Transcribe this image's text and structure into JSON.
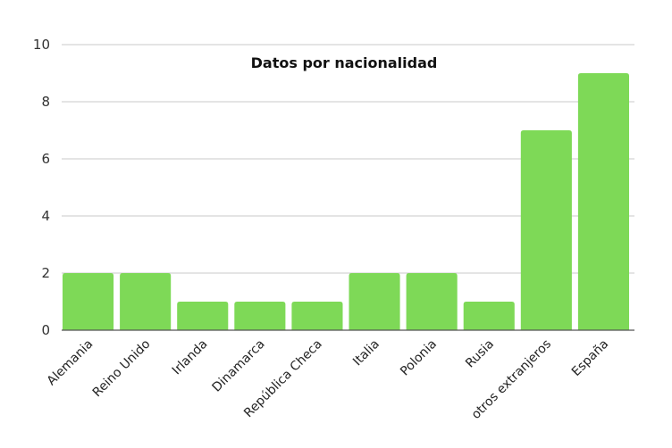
{
  "chart_data": {
    "type": "bar",
    "title": "Datos por nacionalidad",
    "xlabel": "",
    "ylabel": "",
    "ylim": [
      0,
      10
    ],
    "yticks": [
      0,
      2,
      4,
      6,
      8,
      10
    ],
    "grid": true,
    "legend": null,
    "bar_color": "#7ED957",
    "categories": [
      "Alemania",
      "Reino Unido",
      "Irlanda",
      "Dinamarca",
      "República Checa",
      "Italia",
      "Polonia",
      "Rusia",
      "otros extranjeros",
      "España"
    ],
    "values": [
      2,
      2,
      1,
      1,
      1,
      2,
      2,
      1,
      7,
      9
    ]
  }
}
